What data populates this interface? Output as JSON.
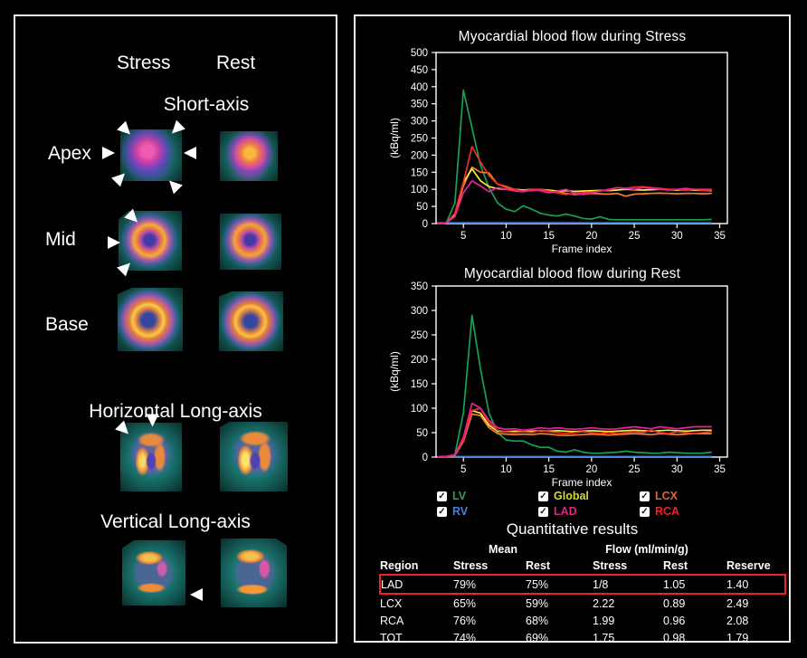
{
  "left_panel": {
    "column_headers": [
      "Stress",
      "Rest"
    ],
    "sections": {
      "short_axis": "Short-axis",
      "horizontal_long_axis": "Horizontal Long-axis",
      "vertical_long_axis": "Vertical Long-axis"
    },
    "slice_labels": [
      "Apex",
      "Mid",
      "Base"
    ]
  },
  "legend": {
    "items": [
      {
        "label": "LV",
        "color": "#2fa254",
        "checked": true
      },
      {
        "label": "RV",
        "color": "#4a7fd4",
        "checked": true
      },
      {
        "label": "Global",
        "color": "#d8d835",
        "checked": true
      },
      {
        "label": "LAD",
        "color": "#e0218a",
        "checked": true
      },
      {
        "label": "LCX",
        "color": "#e0662f",
        "checked": true
      },
      {
        "label": "RCA",
        "color": "#ee2222",
        "checked": true
      }
    ]
  },
  "results": {
    "title": "Quantitative results",
    "group_headers": {
      "mean": "Mean",
      "flow": "Flow (ml/min/g)"
    },
    "columns": [
      "Region",
      "Stress",
      "Rest",
      "Stress",
      "Rest",
      "Reserve"
    ],
    "rows": [
      [
        "LAD",
        "79%",
        "75%",
        "1/8",
        "1.05",
        "1.40"
      ],
      [
        "LCX",
        "65%",
        "59%",
        "2.22",
        "0.89",
        "2.49"
      ],
      [
        "RCA",
        "76%",
        "68%",
        "1.99",
        "0.96",
        "2.08"
      ],
      [
        "TOT",
        "74%",
        "69%",
        "1.75",
        "0.98",
        "1.79"
      ]
    ],
    "highlighted_region": "LAD",
    "highlight_color": "#ee2222"
  },
  "chart_data": [
    {
      "type": "line",
      "title": "Myocardial blood flow during Stress",
      "xlabel": "Frame index",
      "ylabel": "(kBq/ml)",
      "xlim": [
        1.8,
        35.9
      ],
      "ylim": [
        0,
        500
      ],
      "ytick": 50,
      "xticks": [
        5,
        10,
        15,
        20,
        25,
        30,
        35
      ],
      "x_start": 2,
      "grid": false,
      "legend_position": "below",
      "series": [
        {
          "name": "RV",
          "color": "#4a86d8",
          "values": [
            2,
            2,
            2,
            2,
            2,
            2,
            2,
            2,
            2,
            2,
            2,
            2,
            2,
            2,
            2,
            2,
            2,
            2,
            2,
            2,
            2,
            2,
            2,
            2,
            2,
            2,
            2,
            2,
            2,
            2,
            2,
            2,
            2
          ]
        },
        {
          "name": "LV",
          "color": "#14a257",
          "values": [
            0,
            2,
            60,
            390,
            280,
            170,
            105,
            60,
            42,
            35,
            52,
            42,
            30,
            25,
            22,
            28,
            22,
            15,
            13,
            20,
            12,
            11,
            11,
            11,
            11,
            11,
            11,
            11,
            11,
            11,
            11,
            11,
            12
          ]
        },
        {
          "name": "LCX",
          "color": "#f08030",
          "values": [
            0,
            2,
            25,
            110,
            165,
            150,
            148,
            115,
            108,
            100,
            98,
            96,
            100,
            98,
            95,
            88,
            85,
            86,
            88,
            87,
            86,
            88,
            80,
            86,
            87,
            88,
            89,
            88,
            87,
            88,
            88,
            87,
            88
          ]
        },
        {
          "name": "Global",
          "color": "#f5ef3c",
          "values": [
            0,
            2,
            28,
            120,
            160,
            125,
            108,
            102,
            100,
            100,
            98,
            100,
            99,
            97,
            95,
            96,
            94,
            95,
            96,
            97,
            96,
            98,
            100,
            99,
            98,
            99,
            100,
            99,
            98,
            99,
            98,
            97,
            96
          ]
        },
        {
          "name": "RCA",
          "color": "#f03024",
          "values": [
            0,
            2,
            30,
            120,
            225,
            180,
            140,
            115,
            105,
            100,
            95,
            100,
            100,
            95,
            90,
            85,
            88,
            90,
            92,
            95,
            98,
            105,
            103,
            106,
            108,
            105,
            103,
            100,
            100,
            98,
            100,
            97,
            95
          ]
        },
        {
          "name": "LAD",
          "color": "#e8219a",
          "values": [
            0,
            2,
            20,
            90,
            125,
            110,
            93,
            105,
            100,
            95,
            93,
            98,
            96,
            90,
            95,
            100,
            88,
            85,
            90,
            95,
            100,
            105,
            103,
            100,
            105,
            103,
            100,
            98,
            100,
            103,
            100,
            100,
            100
          ]
        }
      ]
    },
    {
      "type": "line",
      "title": "Myocardial blood flow during Rest",
      "xlabel": "Frame index",
      "ylabel": "(kBq/ml)",
      "xlim": [
        1.8,
        35.9
      ],
      "ylim": [
        0,
        350
      ],
      "ytick": 50,
      "xticks": [
        5,
        10,
        15,
        20,
        25,
        30,
        35
      ],
      "x_start": 2,
      "grid": false,
      "legend_position": "below",
      "series": [
        {
          "name": "RV",
          "color": "#4a86d8",
          "values": [
            1,
            1,
            1,
            1,
            1,
            1,
            1,
            1,
            1,
            1,
            1,
            1,
            1,
            1,
            1,
            1,
            1,
            1,
            1,
            1,
            1,
            1,
            1,
            1,
            1,
            1,
            1,
            1,
            1,
            1,
            1,
            1,
            1
          ]
        },
        {
          "name": "LV",
          "color": "#14a257",
          "values": [
            0,
            1,
            5,
            90,
            290,
            180,
            90,
            50,
            35,
            33,
            33,
            25,
            20,
            20,
            12,
            10,
            15,
            10,
            8,
            8,
            9,
            10,
            12,
            10,
            9,
            8,
            8,
            10,
            9,
            8,
            8,
            8,
            10
          ]
        },
        {
          "name": "LCX",
          "color": "#f08030",
          "values": [
            0,
            1,
            3,
            32,
            88,
            85,
            60,
            48,
            47,
            46,
            47,
            46,
            48,
            47,
            45,
            44,
            45,
            46,
            47,
            46,
            45,
            46,
            47,
            48,
            47,
            46,
            48,
            47,
            46,
            47,
            48,
            48,
            48
          ]
        },
        {
          "name": "Global",
          "color": "#f5ef3c",
          "values": [
            0,
            1,
            4,
            38,
            95,
            90,
            65,
            53,
            52,
            53,
            52,
            53,
            54,
            53,
            54,
            53,
            52,
            53,
            54,
            53,
            52,
            53,
            54,
            55,
            54,
            53,
            54,
            55,
            54,
            53,
            54,
            55,
            55
          ]
        },
        {
          "name": "RCA",
          "color": "#f03024",
          "values": [
            0,
            1,
            4,
            35,
            95,
            100,
            70,
            55,
            52,
            50,
            52,
            50,
            55,
            52,
            50,
            48,
            50,
            52,
            50,
            48,
            50,
            48,
            50,
            52,
            50,
            55,
            50,
            48,
            52,
            50,
            48,
            50,
            52
          ]
        },
        {
          "name": "LAD",
          "color": "#e8219a",
          "values": [
            0,
            1,
            5,
            40,
            110,
            100,
            75,
            60,
            57,
            58,
            55,
            57,
            60,
            58,
            60,
            58,
            57,
            58,
            60,
            58,
            57,
            58,
            60,
            62,
            60,
            58,
            62,
            60,
            58,
            60,
            62,
            62,
            62
          ]
        }
      ]
    }
  ]
}
